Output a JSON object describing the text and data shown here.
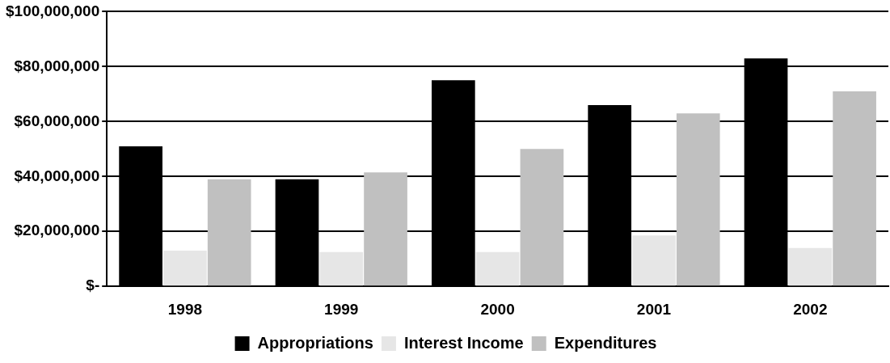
{
  "chart_data": {
    "type": "bar",
    "categories": [
      "1998",
      "1999",
      "2000",
      "2001",
      "2002"
    ],
    "series": [
      {
        "name": "Appropriations",
        "color": "#000000",
        "values": [
          51000000,
          39000000,
          75000000,
          66000000,
          83000000
        ]
      },
      {
        "name": "Interest Income",
        "color": "#e6e6e6",
        "values": [
          13000000,
          12500000,
          12500000,
          18500000,
          14000000
        ]
      },
      {
        "name": "Expenditures",
        "color": "#c0c0c0",
        "values": [
          39000000,
          41500000,
          50000000,
          63000000,
          71000000
        ]
      }
    ],
    "ylim": [
      0,
      100000000
    ],
    "yticks": [
      {
        "value": 0,
        "label": "$-"
      },
      {
        "value": 20000000,
        "label": "$20,000,000"
      },
      {
        "value": 40000000,
        "label": "$40,000,000"
      },
      {
        "value": 60000000,
        "label": "$60,000,000"
      },
      {
        "value": 80000000,
        "label": "$80,000,000"
      },
      {
        "value": 100000000,
        "label": "$100,000,000"
      }
    ],
    "grid": "y",
    "legend": "bottom"
  }
}
